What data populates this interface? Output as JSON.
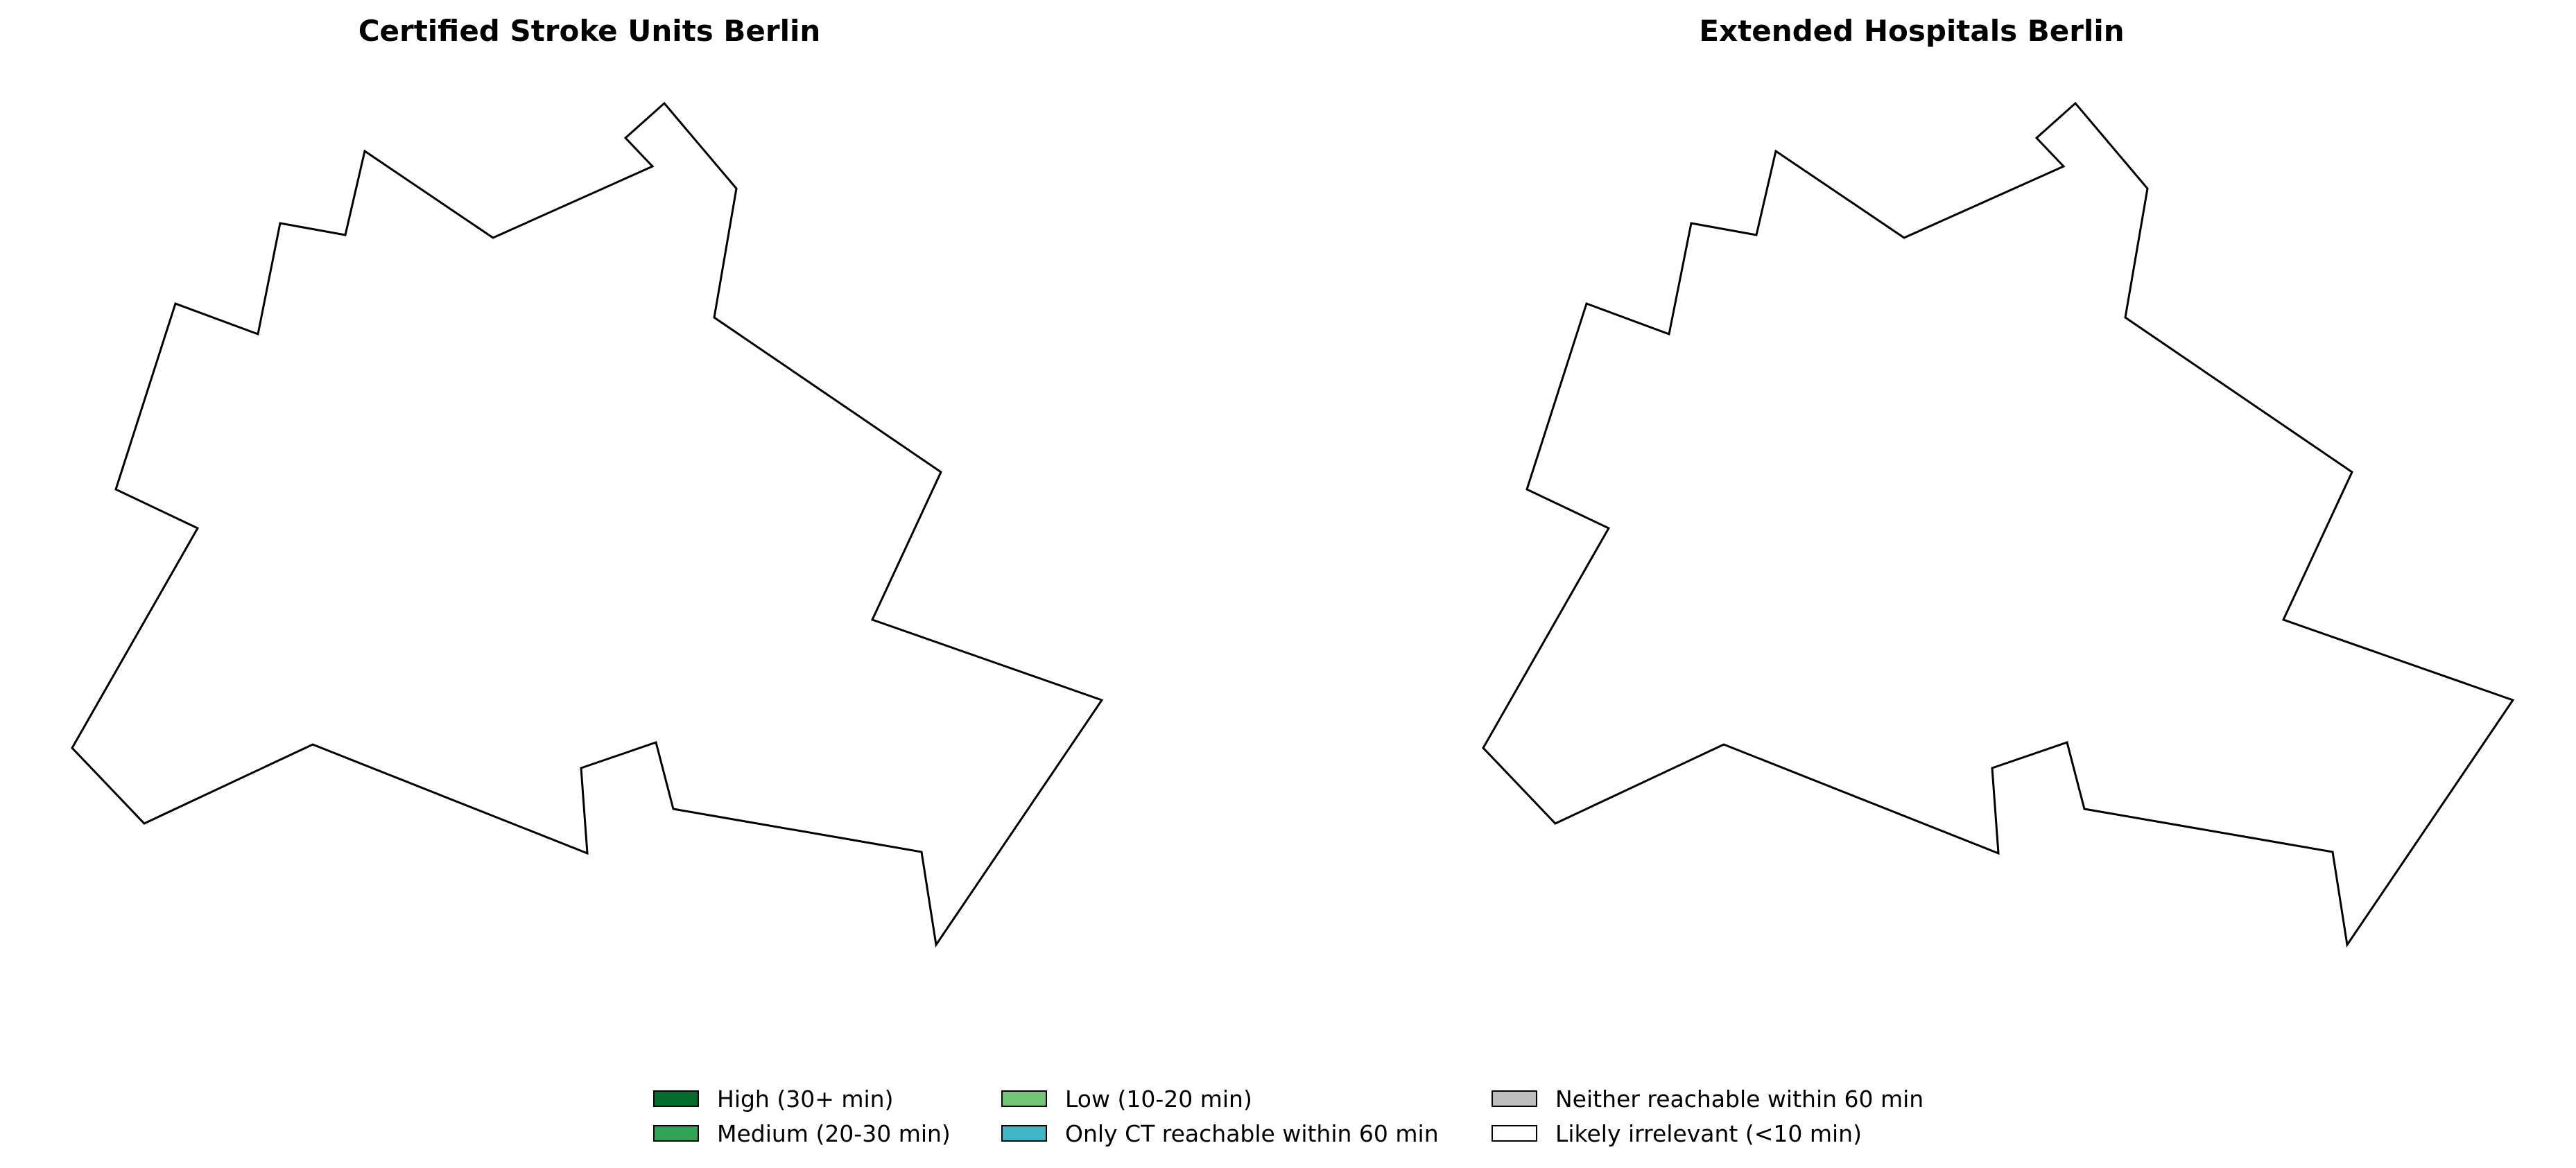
{
  "maps": [
    {
      "title": "Certified Stroke Units Berlin"
    },
    {
      "title": "Extended Hospitals Berlin"
    }
  ],
  "legend": {
    "items": [
      {
        "label": "High (30+ min)",
        "color": "#006d2c"
      },
      {
        "label": "Medium (20-30 min)",
        "color": "#31a354"
      },
      {
        "label": "Low (10-20 min)",
        "color": "#74c476"
      },
      {
        "label": "Only CT reachable within 60 min",
        "color": "#41b6c4"
      },
      {
        "label": "Neither reachable within 60 min",
        "color": "#bdbdbd"
      },
      {
        "label": "Likely irrelevant (<10 min)",
        "color": "#ffffff"
      }
    ]
  },
  "map_style": {
    "outline_color": "#000000",
    "fill_color": "#ffffff"
  }
}
